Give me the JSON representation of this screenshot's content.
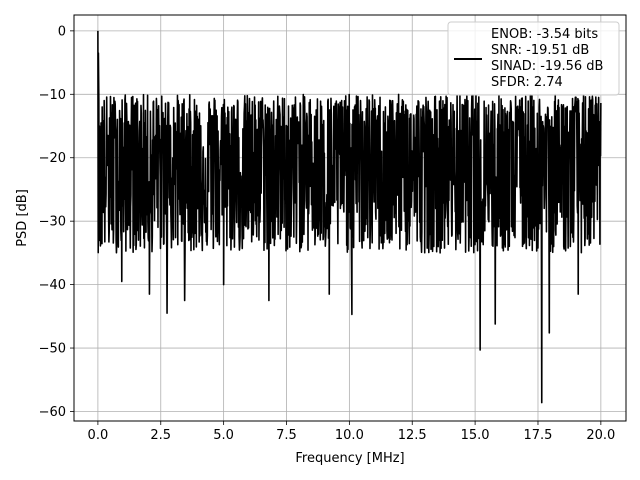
{
  "chart_data": {
    "type": "line",
    "title": "",
    "xlabel": "Frequency [MHz]",
    "ylabel": "PSD [dB]",
    "xlim": [
      -0.95,
      21.0
    ],
    "ylim": [
      -61.5,
      2.5
    ],
    "xticks": [
      0.0,
      2.5,
      5.0,
      7.5,
      10.0,
      12.5,
      15.0,
      17.5,
      20.0
    ],
    "xtick_labels": [
      "0.0",
      "2.5",
      "5.0",
      "7.5",
      "10.0",
      "12.5",
      "15.0",
      "17.5",
      "20.0"
    ],
    "yticks": [
      0,
      -10,
      -20,
      -30,
      -40,
      -50,
      -60
    ],
    "ytick_labels": [
      "0",
      "−10",
      "−20",
      "−30",
      "−40",
      "−50",
      "−60"
    ],
    "grid": true,
    "legend_position": "top-right",
    "legend_lines": [
      "ENOB: -3.54 bits",
      "SNR: -19.51 dB",
      "SINAD: -19.56 dB",
      "SFDR: 2.74"
    ],
    "series": [
      {
        "color": "#000000",
        "frequency_range": [
          0.0,
          20.0
        ],
        "num_points": 1600,
        "noise_floor_db": -21,
        "noise_spread_db": [
          -35,
          -10
        ],
        "peaks": [
          {
            "x": 0.0,
            "y": 0.0
          },
          {
            "x": 0.02,
            "y": -3.5
          },
          {
            "x": 0.06,
            "y": -15.0
          },
          {
            "x": 0.1,
            "y": -20.0
          },
          {
            "x": 0.17,
            "y": -12.0
          }
        ],
        "deep_minima": [
          {
            "x": 0.1,
            "y": -33.9
          },
          {
            "x": 0.95,
            "y": -39.5
          },
          {
            "x": 2.05,
            "y": -41.5
          },
          {
            "x": 2.75,
            "y": -44.5
          },
          {
            "x": 3.45,
            "y": -42.5
          },
          {
            "x": 5.0,
            "y": -40.0
          },
          {
            "x": 6.8,
            "y": -42.5
          },
          {
            "x": 9.2,
            "y": -41.5
          },
          {
            "x": 10.1,
            "y": -44.7
          },
          {
            "x": 15.2,
            "y": -50.3
          },
          {
            "x": 15.8,
            "y": -46.2
          },
          {
            "x": 17.65,
            "y": -58.6
          },
          {
            "x": 17.95,
            "y": -47.6
          },
          {
            "x": 19.1,
            "y": -41.5
          }
        ]
      }
    ]
  }
}
